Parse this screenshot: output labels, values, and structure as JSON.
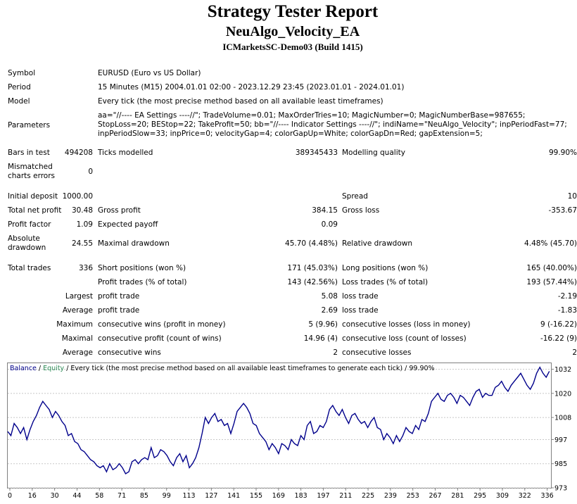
{
  "report": {
    "title": "Strategy Tester Report",
    "ea_name": "NeuAlgo_Velocity_EA",
    "server": "ICMarketsSC-Demo03 (Build 1415)"
  },
  "settings": {
    "symbol_label": "Symbol",
    "symbol_value": "EURUSD (Euro vs US Dollar)",
    "period_label": "Period",
    "period_value": "15 Minutes (M15) 2004.01.01 02:00 - 2023.12.29 23:45 (2023.01.01 - 2024.01.01)",
    "model_label": "Model",
    "model_value": "Every tick (the most precise method based on all available least timeframes)",
    "parameters_label": "Parameters",
    "parameters_value": "aa=\"//---- EA Settings ----//\"; TradeVolume=0.01; MaxOrderTries=10; MagicNumber=0; MagicNumberBase=987655; StopLoss=20; BEStop=22; TakeProfit=50; bb=\"//---- Indicator Settings ----//\"; indiName=\"NeuAlgo_Velocity\"; inpPeriodFast=77; inpPeriodSlow=33; inpPrice=0; velocityGap=4; colorGapUp=White; colorGapDn=Red; gapExtension=5;"
  },
  "stats": {
    "bars_label": "Bars in test",
    "bars_value": "494208",
    "ticks_label": "Ticks modelled",
    "ticks_value": "389345433",
    "quality_label": "Modelling quality",
    "quality_value": "99.90%",
    "mismatched_label": "Mismatched charts errors",
    "mismatched_value": "0",
    "deposit_label": "Initial deposit",
    "deposit_value": "1000.00",
    "spread_label": "Spread",
    "spread_value": "10",
    "net_profit_label": "Total net profit",
    "net_profit_value": "30.48",
    "gross_profit_label": "Gross profit",
    "gross_profit_value": "384.15",
    "gross_loss_label": "Gross loss",
    "gross_loss_value": "-353.67",
    "profit_factor_label": "Profit factor",
    "profit_factor_value": "1.09",
    "expected_payoff_label": "Expected payoff",
    "expected_payoff_value": "0.09",
    "abs_dd_label": "Absolute drawdown",
    "abs_dd_value": "24.55",
    "max_dd_label": "Maximal drawdown",
    "max_dd_value": "45.70 (4.48%)",
    "rel_dd_label": "Relative drawdown",
    "rel_dd_value": "4.48% (45.70)",
    "total_trades_label": "Total trades",
    "total_trades_value": "336",
    "short_label": "Short positions (won %)",
    "short_value": "171 (45.03%)",
    "long_label": "Long positions (won %)",
    "long_value": "165 (40.00%)",
    "profit_trades_label": "Profit trades (% of total)",
    "profit_trades_value": "143 (42.56%)",
    "loss_trades_label": "Loss trades (% of total)",
    "loss_trades_value": "193 (57.44%)",
    "largest_label": "Largest",
    "largest_profit_label": "profit trade",
    "largest_profit_value": "5.08",
    "largest_loss_label": "loss trade",
    "largest_loss_value": "-2.19",
    "average_label": "Average",
    "average_profit_label": "profit trade",
    "average_profit_value": "2.69",
    "average_loss_label": "loss trade",
    "average_loss_value": "-1.83",
    "maximum_label": "Maximum",
    "max_cons_wins_label": "consecutive wins (profit in money)",
    "max_cons_wins_value": "5 (9.96)",
    "max_cons_losses_label": "consecutive losses (loss in money)",
    "max_cons_losses_value": "9 (-16.22)",
    "maximal_label": "Maximal",
    "maximal_profit_label": "consecutive profit (count of wins)",
    "maximal_profit_value": "14.96 (4)",
    "maximal_loss_label": "consecutive loss (count of losses)",
    "maximal_loss_value": "-16.22 (9)",
    "avg_cons_label": "Average",
    "avg_cons_wins_label": "consecutive wins",
    "avg_cons_wins_value": "2",
    "avg_cons_losses_label": "consecutive losses",
    "avg_cons_losses_value": "2"
  },
  "chart_data": {
    "type": "line",
    "legend_balance": "Balance",
    "legend_sep1": " / ",
    "legend_equity": "Equity",
    "legend_rest": " / Every tick (the most precise method based on all available least timeframes to generate each tick) / 99.90%",
    "x_ticks": [
      "0",
      "16",
      "30",
      "44",
      "58",
      "71",
      "85",
      "99",
      "113",
      "127",
      "141",
      "155",
      "169",
      "183",
      "197",
      "211",
      "225",
      "239",
      "253",
      "267",
      "281",
      "295",
      "309",
      "322",
      "336"
    ],
    "y_ticks": [
      "1032",
      "1020",
      "1008",
      "997",
      "985",
      "973"
    ],
    "ylim": [
      973,
      1035
    ],
    "xlim": [
      0,
      341
    ],
    "series": [
      {
        "name": "Balance",
        "x": [
          0,
          2,
          4,
          6,
          8,
          10,
          12,
          14,
          16,
          18,
          20,
          22,
          24,
          26,
          28,
          30,
          32,
          34,
          36,
          38,
          40,
          42,
          44,
          46,
          48,
          50,
          52,
          54,
          56,
          58,
          60,
          62,
          64,
          66,
          68,
          70,
          72,
          74,
          76,
          78,
          80,
          82,
          84,
          86,
          88,
          90,
          92,
          94,
          96,
          98,
          100,
          102,
          104,
          106,
          108,
          110,
          112,
          114,
          116,
          118,
          120,
          122,
          124,
          126,
          128,
          130,
          132,
          134,
          136,
          138,
          140,
          142,
          144,
          146,
          148,
          150,
          152,
          154,
          156,
          158,
          160,
          162,
          164,
          166,
          168,
          170,
          172,
          174,
          176,
          178,
          180,
          182,
          184,
          186,
          188,
          190,
          192,
          194,
          196,
          198,
          200,
          202,
          204,
          206,
          208,
          210,
          212,
          214,
          216,
          218,
          220,
          222,
          224,
          226,
          228,
          230,
          232,
          234,
          236,
          238,
          240,
          242,
          244,
          246,
          248,
          250,
          252,
          254,
          256,
          258,
          260,
          262,
          264,
          266,
          268,
          270,
          272,
          274,
          276,
          278,
          280,
          282,
          284,
          286,
          288,
          290,
          292,
          294,
          296,
          298,
          300,
          302,
          304,
          306,
          308,
          310,
          312,
          314,
          316,
          318,
          320,
          322,
          324,
          326,
          328,
          330,
          332,
          334,
          336,
          338,
          340
        ],
        "y": [
          1001,
          999,
          1005,
          1003,
          1000,
          1003,
          997,
          1002,
          1006,
          1009,
          1013,
          1016,
          1014,
          1012,
          1008,
          1011,
          1009,
          1006,
          1004,
          999,
          1000,
          996,
          995,
          992,
          991,
          989,
          987,
          986,
          984,
          983,
          984,
          981,
          985,
          982,
          983,
          985,
          983,
          980,
          981,
          986,
          987,
          985,
          987,
          988,
          987,
          993,
          988,
          989,
          992,
          991,
          989,
          986,
          984,
          988,
          990,
          986,
          989,
          983,
          985,
          988,
          993,
          1000,
          1008,
          1005,
          1008,
          1010,
          1006,
          1007,
          1004,
          1005,
          1000,
          1005,
          1011,
          1013,
          1015,
          1013,
          1010,
          1005,
          1004,
          1000,
          998,
          996,
          992,
          995,
          993,
          990,
          995,
          994,
          992,
          997,
          995,
          994,
          999,
          997,
          1004,
          1006,
          1000,
          1001,
          1004,
          1003,
          1006,
          1012,
          1014,
          1011,
          1009,
          1012,
          1008,
          1005,
          1009,
          1010,
          1007,
          1005,
          1006,
          1003,
          1006,
          1008,
          1003,
          1002,
          997,
          1000,
          998,
          995,
          999,
          996,
          999,
          1003,
          1001,
          1000,
          1004,
          1002,
          1007,
          1006,
          1010,
          1016,
          1018,
          1020,
          1017,
          1016,
          1019,
          1020,
          1018,
          1015,
          1019,
          1018,
          1016,
          1014,
          1018,
          1021,
          1022,
          1018,
          1020,
          1019,
          1019,
          1023,
          1024,
          1026,
          1023,
          1021,
          1024,
          1026,
          1028,
          1030,
          1027,
          1024,
          1022,
          1025,
          1030,
          1033,
          1030,
          1028,
          1031
        ]
      }
    ]
  }
}
